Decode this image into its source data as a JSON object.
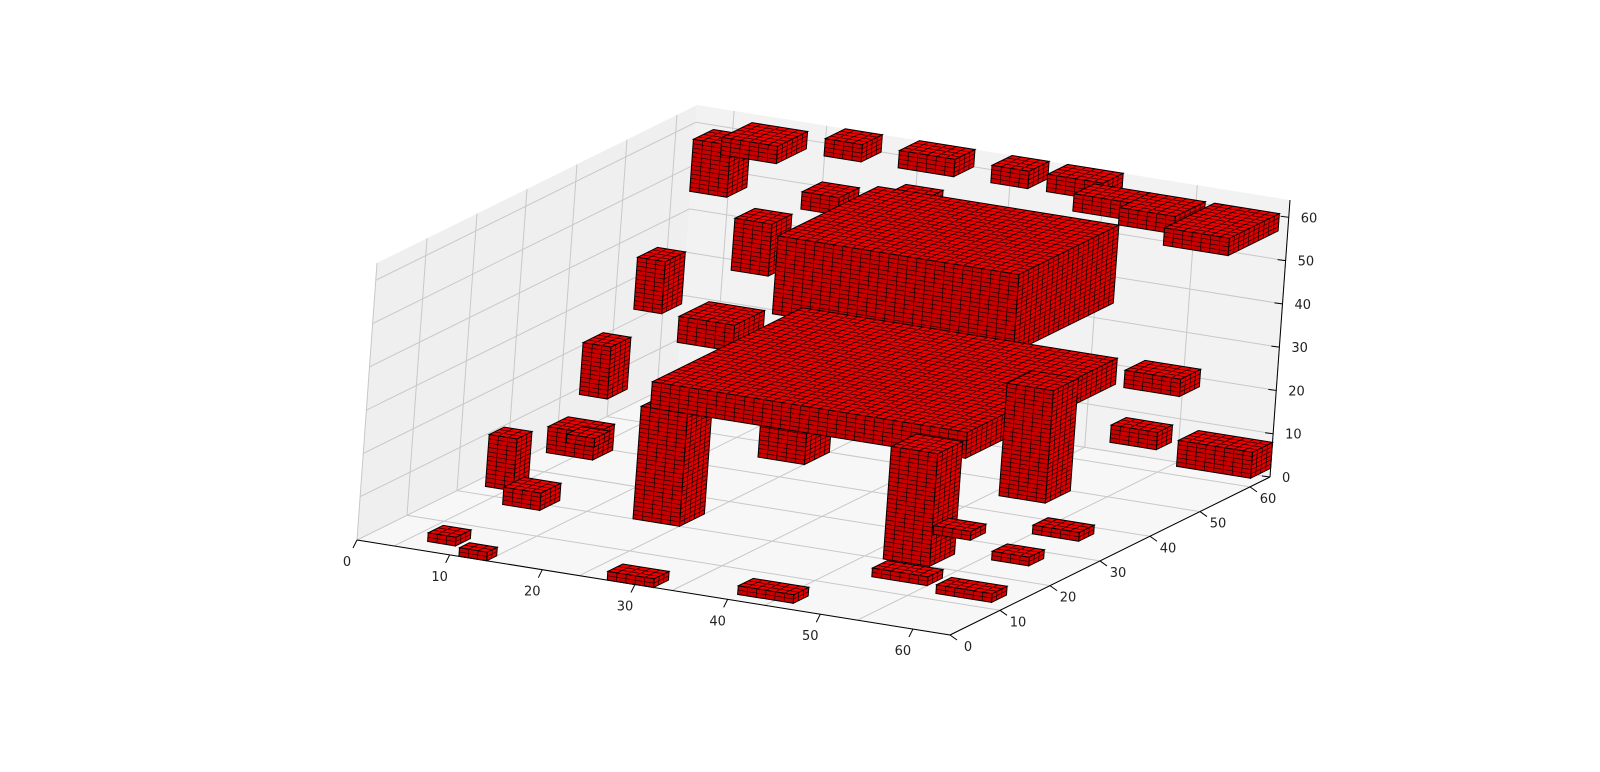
{
  "chart_data": {
    "type": "voxel",
    "title": "",
    "xlabel": "",
    "ylabel": "",
    "zlabel": "",
    "x_ticks": [
      0,
      10,
      20,
      30,
      40,
      50,
      60
    ],
    "y_ticks": [
      0,
      10,
      20,
      30,
      40,
      50,
      60
    ],
    "z_ticks": [
      0,
      10,
      20,
      30,
      40,
      50,
      60
    ],
    "xlim": [
      0,
      64
    ],
    "ylim": [
      0,
      64
    ],
    "zlim": [
      0,
      64
    ],
    "grid": true,
    "voxel_face_color": "#e00000",
    "voxel_edge_color": "#000000",
    "pane_colors": {
      "left": "#efefef",
      "back": "#f2f2f2",
      "floor": "#f7f7f7"
    },
    "voxels": [
      {
        "x": [
          16,
          42
        ],
        "y": [
          40,
          60
        ],
        "z": [
          37,
          55
        ]
      },
      {
        "x": [
          10,
          44
        ],
        "y": [
          20,
          50
        ],
        "z": [
          26,
          32
        ]
      },
      {
        "x": [
          13,
          18
        ],
        "y": [
          20,
          25
        ],
        "z": [
          0,
          26
        ]
      },
      {
        "x": [
          40,
          45
        ],
        "y": [
          20,
          25
        ],
        "z": [
          0,
          26
        ]
      },
      {
        "x": [
          14,
          19
        ],
        "y": [
          45,
          50
        ],
        "z": [
          0,
          26
        ]
      },
      {
        "x": [
          40,
          45
        ],
        "y": [
          45,
          50
        ],
        "z": [
          0,
          26
        ]
      },
      {
        "x": [
          2,
          8
        ],
        "y": [
          12,
          15
        ],
        "z": [
          0,
          2
        ]
      },
      {
        "x": [
          10,
          16
        ],
        "y": [
          14,
          17
        ],
        "z": [
          0,
          2
        ]
      },
      {
        "x": [
          18,
          24
        ],
        "y": [
          2,
          5
        ],
        "z": [
          0,
          2
        ]
      },
      {
        "x": [
          32,
          37
        ],
        "y": [
          0,
          3
        ],
        "z": [
          0,
          2
        ]
      },
      {
        "x": [
          50,
          53
        ],
        "y": [
          0,
          2
        ],
        "z": [
          0,
          2
        ]
      },
      {
        "x": [
          55,
          58
        ],
        "y": [
          3,
          6
        ],
        "z": [
          0,
          2
        ]
      },
      {
        "x": [
          60,
          63
        ],
        "y": [
          40,
          43
        ],
        "z": [
          0,
          2
        ]
      },
      {
        "x": [
          5,
          9
        ],
        "y": [
          25,
          28
        ],
        "z": [
          0,
          2
        ]
      },
      {
        "x": [
          14,
          18
        ],
        "y": [
          30,
          33
        ],
        "z": [
          0,
          2
        ]
      },
      {
        "x": [
          5,
          10
        ],
        "y": [
          35,
          38
        ],
        "z": [
          0,
          2
        ]
      },
      {
        "x": [
          54,
          58
        ],
        "y": [
          18,
          22
        ],
        "z": [
          0,
          4
        ]
      },
      {
        "x": [
          58,
          61
        ],
        "y": [
          20,
          23
        ],
        "z": [
          2,
          14
        ]
      },
      {
        "x": [
          58,
          63
        ],
        "y": [
          36,
          40
        ],
        "z": [
          0,
          6
        ]
      },
      {
        "x": [
          60,
          63
        ],
        "y": [
          42,
          46
        ],
        "z": [
          10,
          22
        ]
      },
      {
        "x": [
          0,
          8
        ],
        "y": [
          60,
          64
        ],
        "z": [
          2,
          8
        ]
      },
      {
        "x": [
          0,
          6
        ],
        "y": [
          44,
          48
        ],
        "z": [
          30,
          34
        ]
      },
      {
        "x": [
          0,
          5
        ],
        "y": [
          40,
          43
        ],
        "z": [
          20,
          24
        ]
      },
      {
        "x": [
          0,
          7
        ],
        "y": [
          52,
          62
        ],
        "z": [
          58,
          62
        ]
      },
      {
        "x": [
          8,
          14
        ],
        "y": [
          56,
          62
        ],
        "z": [
          58,
          62
        ]
      },
      {
        "x": [
          14,
          20
        ],
        "y": [
          58,
          62
        ],
        "z": [
          58,
          62
        ]
      },
      {
        "x": [
          18,
          24
        ],
        "y": [
          60,
          64
        ],
        "z": [
          60,
          64
        ]
      },
      {
        "x": [
          26,
          30
        ],
        "y": [
          60,
          64
        ],
        "z": [
          60,
          64
        ]
      },
      {
        "x": [
          34,
          40
        ],
        "y": [
          60,
          64
        ],
        "z": [
          60,
          64
        ]
      },
      {
        "x": [
          44,
          48
        ],
        "y": [
          60,
          64
        ],
        "z": [
          60,
          64
        ]
      },
      {
        "x": [
          52,
          58
        ],
        "y": [
          58,
          64
        ],
        "z": [
          58,
          62
        ]
      },
      {
        "x": [
          56,
          60
        ],
        "y": [
          56,
          60
        ],
        "z": [
          50,
          62
        ]
      },
      {
        "x": [
          52,
          56
        ],
        "y": [
          58,
          62
        ],
        "z": [
          32,
          44
        ]
      },
      {
        "x": [
          48,
          54
        ],
        "y": [
          44,
          50
        ],
        "z": [
          24,
          30
        ]
      },
      {
        "x": [
          60,
          63
        ],
        "y": [
          52,
          56
        ],
        "z": [
          24,
          36
        ]
      },
      {
        "x": [
          44,
          48
        ],
        "y": [
          56,
          60
        ],
        "z": [
          50,
          54
        ]
      },
      {
        "x": [
          34,
          38
        ],
        "y": [
          54,
          58
        ],
        "z": [
          54,
          58
        ]
      }
    ]
  }
}
